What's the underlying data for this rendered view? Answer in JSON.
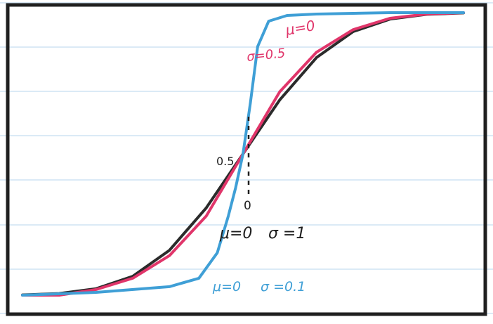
{
  "chart_data": {
    "type": "line",
    "title": "",
    "xlabel": "",
    "ylabel": "",
    "xlim": [
      -3,
      3
    ],
    "ylim": [
      0,
      1
    ],
    "grid": "horizontal ruled lines",
    "annotations": {
      "y_mid_label": "0.5",
      "x_zero_label": "0"
    },
    "series": [
      {
        "key": "black",
        "color": "#2b2b2b",
        "mu": 0,
        "sigma": 1,
        "label_parts": [
          "μ=0",
          "σ =1"
        ],
        "x": [
          -3.0,
          -2.5,
          -2.0,
          -1.5,
          -1.0,
          -0.5,
          0.0,
          0.5,
          1.0,
          1.5,
          2.0,
          2.5,
          3.0
        ],
        "values": [
          0.001,
          0.006,
          0.023,
          0.067,
          0.159,
          0.309,
          0.5,
          0.691,
          0.841,
          0.933,
          0.977,
          0.994,
          0.999
        ]
      },
      {
        "key": "pink",
        "color": "#e0356a",
        "mu": 0,
        "sigma": 0.5,
        "label_parts": [
          "μ=0",
          "σ=0.5"
        ],
        "x": [
          -3.0,
          -2.5,
          -2.0,
          -1.5,
          -1.0,
          -0.5,
          0.0,
          0.5,
          1.0,
          1.5,
          2.0,
          2.5,
          3.0
        ],
        "values": [
          0.0,
          0.0,
          0.02,
          0.06,
          0.14,
          0.28,
          0.5,
          0.72,
          0.86,
          0.94,
          0.98,
          0.995,
          1.0
        ]
      },
      {
        "key": "blue",
        "color": "#3f9fd6",
        "mu": 0,
        "sigma": 0.1,
        "label_parts": [
          "μ=0",
          "σ =0.1"
        ],
        "x": [
          -3.0,
          -2.0,
          -1.0,
          -0.6,
          -0.35,
          -0.2,
          -0.1,
          0.0,
          0.1,
          0.2,
          0.35,
          0.6,
          1.0,
          2.0,
          3.0
        ],
        "values": [
          0.0,
          0.01,
          0.03,
          0.06,
          0.15,
          0.28,
          0.38,
          0.5,
          0.68,
          0.88,
          0.97,
          0.99,
          0.995,
          1.0,
          1.0
        ]
      }
    ]
  },
  "colors": {
    "frame": "#1f1f1f",
    "rule_lines": "#cfe3f3"
  }
}
